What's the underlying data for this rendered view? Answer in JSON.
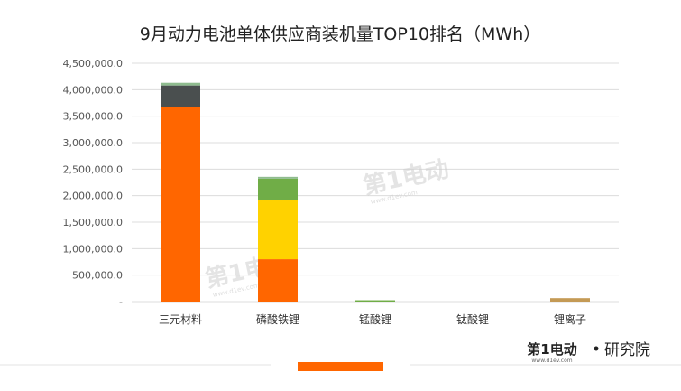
{
  "chart_data": {
    "type": "bar",
    "stacked": true,
    "title": "9月动力电池单体供应商装机量TOP10排名（MWh）",
    "categories": [
      "三元材料",
      "磷酸铁锂",
      "锰酸锂",
      "钛酸锂",
      "锂离子"
    ],
    "series": [
      {
        "color": "#FF6600",
        "values": [
          3670000,
          800000,
          0,
          0,
          0
        ]
      },
      {
        "color": "#FFD200",
        "values": [
          0,
          1120000,
          0,
          0,
          0
        ]
      },
      {
        "color": "#70AD47",
        "values": [
          0,
          400000,
          25000,
          0,
          0
        ]
      },
      {
        "color": "#4A4F4F",
        "values": [
          410000,
          0,
          0,
          0,
          0
        ]
      },
      {
        "color": "#8FBC8F",
        "values": [
          50000,
          35000,
          0,
          0,
          0
        ]
      },
      {
        "color": "#C49A55",
        "values": [
          0,
          0,
          0,
          0,
          65000
        ]
      }
    ],
    "ylim": [
      0,
      4500000
    ],
    "yticks": [
      0,
      500000,
      1000000,
      1500000,
      2000000,
      2500000,
      3000000,
      3500000,
      4000000,
      4500000
    ],
    "ytick_labels": [
      "-",
      "500,000.0",
      "1,000,000.0",
      "1,500,000.0",
      "2,000,000.0",
      "2,500,000.0",
      "3,000,000.0",
      "3,500,000.0",
      "4,000,000.0",
      "4,500,000.0"
    ],
    "grid": true,
    "legend": false
  },
  "branding": {
    "logo": "第1电动",
    "logo_sub": "www.d1ev.com",
    "text": "研究院",
    "accent_color": "#FF6600"
  },
  "watermark": {
    "logo": "第1电动",
    "sub": "www.d1ev.com"
  }
}
